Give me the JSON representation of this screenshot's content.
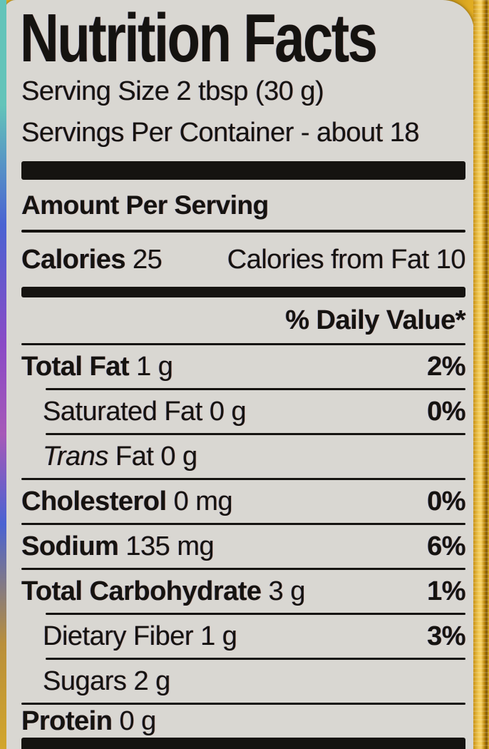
{
  "colors": {
    "label_bg": "#d9d7d2",
    "ink": "#151310",
    "gold_light": "#f3cb55",
    "gold_mid": "#e0ac22",
    "gold_dark": "#7c5505",
    "edge_teal": "#63c4b9",
    "edge_blue": "#4a63d2",
    "edge_purple": "#8a4ac6"
  },
  "label": {
    "title": "Nutrition Facts",
    "serving_size": "Serving Size 2 tbsp (30 g)",
    "servings_per_container": "Servings Per Container - about 18",
    "amount_per_serving": "Amount Per Serving",
    "calories": {
      "label": "Calories",
      "value": "25",
      "from_fat": "Calories from Fat 10"
    },
    "daily_value_header": "% Daily Value*",
    "rows": [
      {
        "name": "Total Fat",
        "amount": "1 g",
        "dv": "2%",
        "style": "bold",
        "sep_above": "full"
      },
      {
        "name": "Saturated Fat",
        "amount": "0 g",
        "dv": "0%",
        "style": "indent",
        "sep_above": "indent"
      },
      {
        "name_italic": "Trans",
        "name": "Fat",
        "amount": "0 g",
        "dv": "",
        "style": "indent",
        "sep_above": "indent"
      },
      {
        "name": "Cholesterol",
        "amount": "0 mg",
        "dv": "0%",
        "style": "bold",
        "sep_above": "full"
      },
      {
        "name": "Sodium",
        "amount": "135 mg",
        "dv": "6%",
        "style": "bold",
        "sep_above": "full"
      },
      {
        "name": "Total Carbohydrate",
        "amount": "3 g",
        "dv": "1%",
        "style": "bold",
        "sep_above": "full"
      },
      {
        "name": "Dietary Fiber",
        "amount": "1 g",
        "dv": "3%",
        "style": "indent",
        "sep_above": "indent"
      },
      {
        "name": "Sugars",
        "amount": "2 g",
        "dv": "",
        "style": "indent",
        "sep_above": "indent"
      },
      {
        "name": "Protein",
        "amount": "0 g",
        "dv": "",
        "style": "bold",
        "sep_above": "full"
      }
    ]
  }
}
